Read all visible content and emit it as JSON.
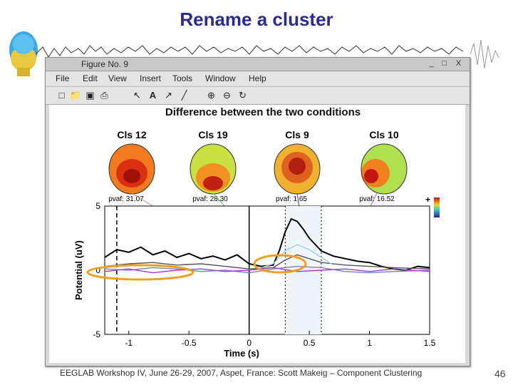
{
  "slide": {
    "title": "Rename a cluster",
    "footer": "EEGLAB Workshop IV, June 26-29, 2007, Aspet, France: Scott Makeig – Component Clustering",
    "page_number": "46"
  },
  "window": {
    "title": "Figure No. 9",
    "buttons": [
      "_",
      "□",
      "X"
    ],
    "menu": [
      "File",
      "Edit",
      "View",
      "Insert",
      "Tools",
      "Window",
      "Help"
    ],
    "toolbar_icons": [
      "new-file-icon",
      "open-folder-icon",
      "save-icon",
      "print-icon",
      "arrow-cursor-icon",
      "text-tool-icon",
      "arrow-tool-icon",
      "line-tool-icon",
      "zoom-in-icon",
      "zoom-out-icon",
      "rotate-icon"
    ]
  },
  "figure": {
    "title": "Difference between the two conditions",
    "clusters": [
      {
        "name": "Cls 12",
        "pvaf": "pvaf: 31.07"
      },
      {
        "name": "Cls 19",
        "pvaf": "pvaf: 28.30"
      },
      {
        "name": "Cls 9",
        "pvaf": "pvaf: 1.65"
      },
      {
        "name": "Cls 10",
        "pvaf": "pvaf: 16.52"
      }
    ],
    "colorbar": {
      "plus": "+",
      "minus": "-"
    },
    "highlight_color": "#f0a020"
  },
  "chart_data": {
    "type": "line",
    "xlabel": "Time (s)",
    "ylabel": "Potential (uV)",
    "xlim": [
      -1.2,
      1.5
    ],
    "ylim": [
      -5,
      5
    ],
    "xticks": [
      -1,
      -0.5,
      0,
      0.5,
      1,
      1.5
    ],
    "yticks": [
      5,
      0,
      -5
    ],
    "series": [
      {
        "color": "#000000",
        "x": [
          -1.2,
          -1.1,
          -1.0,
          -0.9,
          -0.8,
          -0.7,
          -0.6,
          -0.5,
          -0.4,
          -0.3,
          -0.2,
          -0.1,
          0,
          0.1,
          0.2,
          0.25,
          0.3,
          0.35,
          0.4,
          0.45,
          0.5,
          0.55,
          0.6,
          0.7,
          0.8,
          0.9,
          1.0,
          1.1,
          1.2,
          1.3,
          1.4,
          1.5
        ],
        "y": [
          1.0,
          1.6,
          1.4,
          1.8,
          1.2,
          1.5,
          1.0,
          1.3,
          0.9,
          1.1,
          0.8,
          1.2,
          0.5,
          0.3,
          0.4,
          1.5,
          3.0,
          4.0,
          3.8,
          3.2,
          2.5,
          2.0,
          1.5,
          1.1,
          0.9,
          0.7,
          0.6,
          0.3,
          0.1,
          0.0,
          0.3,
          0.2
        ]
      },
      {
        "color": "#555555",
        "x": [
          -1.2,
          -1.0,
          -0.8,
          -0.6,
          -0.4,
          -0.2,
          0,
          0.2,
          0.3,
          0.4,
          0.5,
          0.6,
          0.8,
          1.0,
          1.2,
          1.5
        ],
        "y": [
          0.3,
          0.5,
          0.6,
          0.4,
          0.5,
          0.3,
          0.1,
          0.2,
          0.8,
          1.2,
          0.9,
          0.6,
          0.4,
          0.3,
          0.2,
          0.1
        ]
      },
      {
        "color": "#7f7fbf",
        "x": [
          -1.2,
          -1.0,
          -0.8,
          -0.6,
          -0.4,
          -0.2,
          0,
          0.2,
          0.4,
          0.6,
          0.8,
          1.0,
          1.2,
          1.5
        ],
        "y": [
          0.1,
          0.0,
          0.2,
          0.1,
          -0.1,
          0.0,
          -0.2,
          0.1,
          0.3,
          0.2,
          -0.1,
          -0.2,
          -0.1,
          0.0
        ]
      },
      {
        "color": "#a040c0",
        "x": [
          -1.2,
          -1.0,
          -0.8,
          -0.6,
          -0.4,
          -0.2,
          0,
          0.2,
          0.4,
          0.6,
          0.8,
          1.0,
          1.2,
          1.5
        ],
        "y": [
          -0.1,
          0.1,
          -0.2,
          0.0,
          0.1,
          -0.1,
          0.0,
          0.2,
          -0.1,
          0.0,
          0.1,
          -0.1,
          0.1,
          -0.1
        ]
      },
      {
        "color": "#a0d0e8",
        "x": [
          0.1,
          0.2,
          0.3,
          0.4,
          0.5,
          0.6,
          0.7
        ],
        "y": [
          0.2,
          0.5,
          1.5,
          2.0,
          1.6,
          1.0,
          0.4
        ]
      }
    ]
  }
}
